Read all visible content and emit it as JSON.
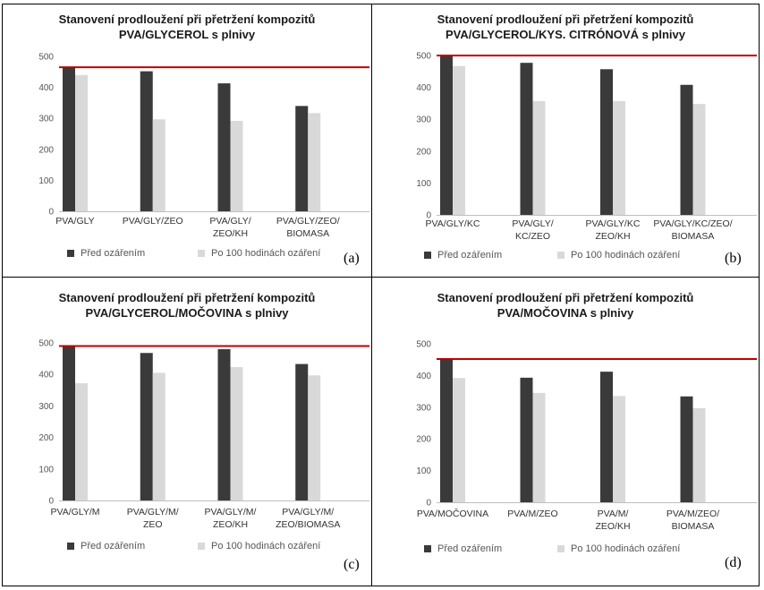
{
  "colors": {
    "before": "#3a3a3a",
    "after": "#d9d9d9",
    "reference_line": "#c00000",
    "axis": "#bfbfbf",
    "tick_text": "#555555"
  },
  "chart_data": [
    {
      "type": "bar",
      "panel_label": "(a)",
      "title_lines": [
        "Stanovení prodloužení při přetržení kompozitů",
        "PVA/GLYCEROL s plnivy"
      ],
      "category_lines": [
        [
          "PVA/GLY"
        ],
        [
          "PVA/GLY/ZEO"
        ],
        [
          "PVA/GLY/",
          "ZEO/KH"
        ],
        [
          "PVA/GLY/ZEO/",
          "BIOMASA"
        ]
      ],
      "series": [
        {
          "name": "Před ozářením",
          "values": [
            465,
            452,
            413,
            340
          ]
        },
        {
          "name": "Po 100 hodinách ozáření",
          "values": [
            440,
            297,
            292,
            317
          ]
        }
      ],
      "yticks": [
        "0",
        "100",
        "200",
        "300",
        "400",
        "500"
      ],
      "ylim": [
        0,
        500
      ],
      "reference_line": 465,
      "legend_position": "bottom"
    },
    {
      "type": "bar",
      "panel_label": "(b)",
      "title_lines": [
        "Stanovení prodloužení při přetržení kompozitů",
        "PVA/GLYCEROL/KYS. CITRÓNOVÁ s plnivy"
      ],
      "category_lines": [
        [
          "PVA/GLY/KC"
        ],
        [
          "PVA/GLY/",
          "KC/ZEO"
        ],
        [
          "PVA/GLY/KC",
          "ZEO/KH"
        ],
        [
          "PVA/GLY/KC/ZEO/",
          "BIOMASA"
        ]
      ],
      "series": [
        {
          "name": "Před ozářením",
          "values": [
            500,
            477,
            457,
            408
          ]
        },
        {
          "name": "Po 100 hodinách ozáření",
          "values": [
            467,
            357,
            357,
            348
          ]
        }
      ],
      "yticks": [
        "0",
        "100",
        "200",
        "300",
        "400",
        "500"
      ],
      "ylim": [
        0,
        500
      ],
      "reference_line": 500,
      "legend_position": "bottom"
    },
    {
      "type": "bar",
      "panel_label": "(c)",
      "title_lines": [
        "Stanovení prodloužení při přetržení kompozitů",
        "PVA/GLYCEROL/MOČOVINA s plnivy"
      ],
      "category_lines": [
        [
          "PVA/GLY/M"
        ],
        [
          "PVA/GLY/M/",
          "ZEO"
        ],
        [
          "PVA/GLY/M/",
          "ZEO/KH"
        ],
        [
          "PVA/GLY/M/",
          "ZEO/BIOMASA"
        ]
      ],
      "series": [
        {
          "name": "Před ozářením",
          "values": [
            490,
            468,
            480,
            433
          ]
        },
        {
          "name": "Po 100 hodinách ozáření",
          "values": [
            372,
            405,
            423,
            397
          ]
        }
      ],
      "yticks": [
        "0",
        "100",
        "200",
        "300",
        "400",
        "500"
      ],
      "ylim": [
        0,
        500
      ],
      "reference_line": 490,
      "legend_position": "bottom"
    },
    {
      "type": "bar",
      "panel_label": "(d)",
      "title_lines": [
        "Stanovení prodloužení při přetržení kompozitů",
        "PVA/MOČOVINA s plnivy"
      ],
      "category_lines": [
        [
          "PVA/MOČOVINA"
        ],
        [
          "PVA/M/ZEO"
        ],
        [
          "PVA/M/",
          "ZEO/KH"
        ],
        [
          "PVA/M/ZEO/",
          "BIOMASA"
        ]
      ],
      "series": [
        {
          "name": "Před ozářením",
          "values": [
            450,
            393,
            412,
            334
          ]
        },
        {
          "name": "Po 100 hodinách ozáření",
          "values": [
            392,
            345,
            335,
            297
          ]
        }
      ],
      "yticks": [
        "0",
        "100",
        "200",
        "300",
        "400",
        "500"
      ],
      "ylim": [
        0,
        500
      ],
      "reference_line": 452,
      "legend_position": "bottom"
    }
  ]
}
